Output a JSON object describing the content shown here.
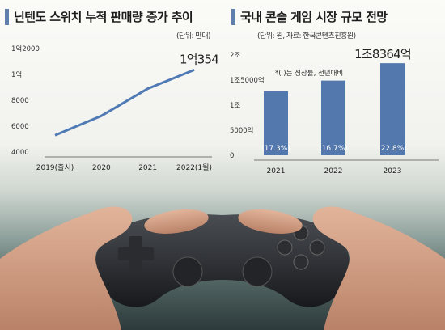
{
  "chart_data": [
    {
      "type": "line",
      "title": "닌텐도 스위치 누적 판매량 증가 추이",
      "unit_note": "(단위: 만대)",
      "categories": [
        "2019(출시)",
        "2020",
        "2021",
        "2022(1월)"
      ],
      "series": [
        {
          "values": [
            5300,
            6800,
            8900,
            10354
          ]
        }
      ],
      "y_ticks": [
        "4000",
        "6000",
        "8000",
        "1억",
        "1억2000"
      ],
      "ylim": [
        4000,
        12000
      ],
      "end_label": "1억354",
      "line_color": "#4f7ab4",
      "grid": false
    },
    {
      "type": "bar",
      "title": "국내 콘솔 게임 시장 규모 전망",
      "unit_note": "(단위: 원, 자료: 한국콘텐츠진흥원)",
      "legend_note": "*( )는 성장률, 전년대비",
      "categories": [
        "2021",
        "2022",
        "2023"
      ],
      "series": [
        {
          "values": [
            12800,
            14900,
            18364
          ]
        }
      ],
      "growth_labels": [
        "(17.3%)",
        "(16.7%)",
        "(22.8%)"
      ],
      "y_ticks": [
        "0",
        "5000억",
        "1조",
        "1조5000억",
        "2조"
      ],
      "ylim": [
        0,
        20000
      ],
      "end_label": "1조8364억",
      "bar_color": "#5278ad",
      "grid": false
    }
  ]
}
